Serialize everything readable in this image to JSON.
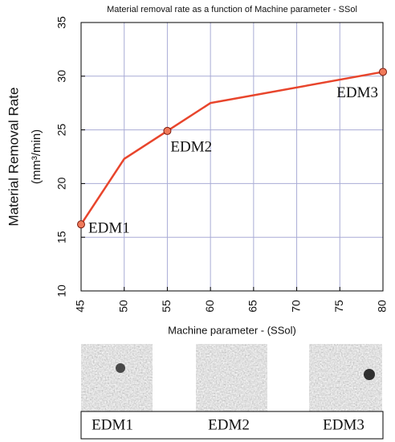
{
  "chart_data": {
    "type": "line",
    "title": "Material removal rate as a function of Machine parameter - SSol",
    "xlabel": "Machine parameter - (SSol)",
    "ylabel": [
      "Material Removal Rate",
      "(mm³/min)"
    ],
    "x": [
      45,
      50,
      55,
      60,
      80
    ],
    "series": [
      {
        "color": "#e8452c",
        "values": [
          16.2,
          22.3,
          24.9,
          27.5,
          30.4
        ]
      }
    ],
    "points": {
      "color": "#f07a5a",
      "x": [
        45,
        55,
        80
      ],
      "values": [
        16.2,
        24.9,
        30.4
      ],
      "labels": [
        "EDM1",
        "EDM2",
        "EDM3"
      ]
    },
    "xlim": [
      45,
      80
    ],
    "xticks": [
      45,
      50,
      55,
      60,
      65,
      70,
      75,
      80
    ],
    "ylim": [
      10,
      35
    ],
    "yticks": [
      10,
      15,
      20,
      25,
      30,
      35
    ],
    "grid": true
  },
  "micrographs": {
    "labels": [
      "EDM1",
      "EDM2",
      "EDM3"
    ]
  }
}
